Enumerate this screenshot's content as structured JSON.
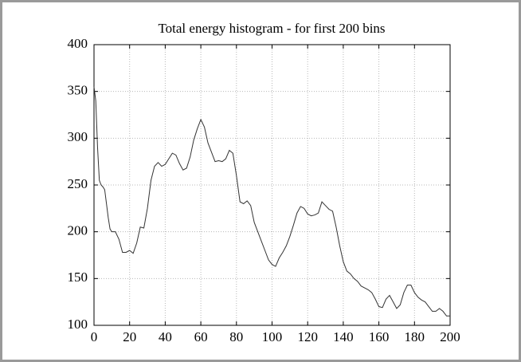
{
  "chart_data": {
    "type": "line",
    "title": "Total energy histogram - for first 200 bins",
    "x": [
      0,
      1,
      2,
      3,
      4,
      5,
      6,
      7,
      8,
      9,
      10,
      12,
      14,
      16,
      18,
      20,
      22,
      24,
      26,
      28,
      30,
      32,
      34,
      36,
      38,
      40,
      42,
      44,
      46,
      48,
      50,
      52,
      54,
      56,
      58,
      60,
      62,
      64,
      66,
      68,
      70,
      72,
      74,
      76,
      78,
      80,
      82,
      84,
      86,
      88,
      90,
      92,
      94,
      96,
      98,
      100,
      102,
      104,
      106,
      108,
      110,
      112,
      114,
      116,
      118,
      120,
      122,
      124,
      126,
      128,
      130,
      132,
      134,
      136,
      138,
      140,
      142,
      144,
      146,
      148,
      150,
      152,
      154,
      156,
      158,
      160,
      162,
      164,
      166,
      168,
      170,
      172,
      174,
      176,
      178,
      180,
      182,
      184,
      186,
      188,
      190,
      192,
      194,
      196,
      198,
      200
    ],
    "series": [
      {
        "name": "Total energy",
        "color": "#333333",
        "values": [
          355,
          340,
          290,
          255,
          250,
          248,
          245,
          230,
          215,
          203,
          200,
          200,
          192,
          178,
          178,
          180,
          177,
          188,
          205,
          204,
          225,
          255,
          270,
          274,
          270,
          272,
          278,
          284,
          282,
          273,
          266,
          268,
          280,
          298,
          310,
          320,
          312,
          295,
          285,
          275,
          276,
          275,
          278,
          287,
          284,
          260,
          232,
          230,
          233,
          228,
          210,
          200,
          190,
          180,
          170,
          165,
          163,
          172,
          178,
          185,
          195,
          207,
          220,
          227,
          225,
          219,
          217,
          218,
          220,
          232,
          228,
          224,
          222,
          205,
          185,
          168,
          158,
          155,
          150,
          147,
          142,
          140,
          138,
          135,
          128,
          120,
          119,
          128,
          132,
          125,
          118,
          122,
          135,
          143,
          143,
          135,
          130,
          127,
          125,
          120,
          115,
          115,
          118,
          115,
          110,
          110
        ]
      }
    ],
    "xlim": [
      0,
      200
    ],
    "xticks": [
      0,
      20,
      40,
      60,
      80,
      100,
      120,
      140,
      160,
      180,
      200
    ],
    "ylim": [
      100,
      400
    ],
    "yticks": [
      100,
      150,
      200,
      250,
      300,
      350,
      400
    ],
    "grid": true
  }
}
